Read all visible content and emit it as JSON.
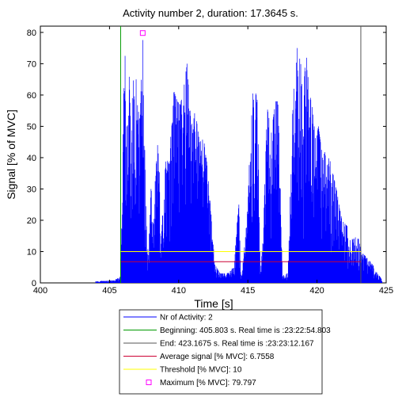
{
  "chart_data": {
    "type": "line",
    "title": "Activity number 2, duration: 17.3645 s.",
    "xlabel": "Time [s]",
    "ylabel": "Signal [% of MVC]",
    "xlim": [
      400,
      425
    ],
    "ylim": [
      0,
      82
    ],
    "xticks": [
      400,
      405,
      410,
      415,
      420,
      425
    ],
    "yticks": [
      0,
      10,
      20,
      30,
      40,
      50,
      60,
      70,
      80
    ],
    "grid": false,
    "legend_position": "bottom",
    "signal_envelope": [
      [
        404.0,
        0.5
      ],
      [
        405.0,
        0.8
      ],
      [
        405.4,
        1.0
      ],
      [
        405.8,
        2.0
      ],
      [
        405.9,
        25
      ],
      [
        406.0,
        55
      ],
      [
        406.1,
        77
      ],
      [
        406.25,
        50
      ],
      [
        406.4,
        70
      ],
      [
        406.55,
        45
      ],
      [
        406.7,
        66
      ],
      [
        406.85,
        58
      ],
      [
        407.0,
        72
      ],
      [
        407.1,
        60
      ],
      [
        407.2,
        50
      ],
      [
        407.4,
        79.8
      ],
      [
        407.6,
        30
      ],
      [
        407.8,
        8
      ],
      [
        408.0,
        30
      ],
      [
        408.2,
        25
      ],
      [
        408.4,
        40
      ],
      [
        408.55,
        48
      ],
      [
        408.7,
        10
      ],
      [
        408.9,
        30
      ],
      [
        409.1,
        40
      ],
      [
        409.3,
        38
      ],
      [
        409.6,
        62
      ],
      [
        409.9,
        58
      ],
      [
        410.1,
        57
      ],
      [
        410.3,
        60
      ],
      [
        410.6,
        70
      ],
      [
        410.9,
        50
      ],
      [
        411.2,
        55
      ],
      [
        411.5,
        45
      ],
      [
        411.8,
        46
      ],
      [
        412.0,
        40
      ],
      [
        412.3,
        25
      ],
      [
        412.6,
        6
      ],
      [
        413.0,
        3
      ],
      [
        413.5,
        3
      ],
      [
        413.8,
        4
      ],
      [
        414.0,
        6
      ],
      [
        414.2,
        18
      ],
      [
        414.35,
        25
      ],
      [
        414.5,
        2
      ],
      [
        414.7,
        8
      ],
      [
        415.0,
        28
      ],
      [
        415.3,
        60
      ],
      [
        415.5,
        62
      ],
      [
        415.7,
        58
      ],
      [
        415.9,
        3
      ],
      [
        416.1,
        14
      ],
      [
        416.4,
        56
      ],
      [
        416.7,
        48
      ],
      [
        417.0,
        58
      ],
      [
        417.2,
        58
      ],
      [
        417.5,
        2
      ],
      [
        417.7,
        3
      ],
      [
        417.9,
        3
      ],
      [
        418.2,
        52
      ],
      [
        418.4,
        68
      ],
      [
        418.6,
        76
      ],
      [
        418.8,
        72
      ],
      [
        419.0,
        55
      ],
      [
        419.2,
        77
      ],
      [
        419.4,
        62
      ],
      [
        419.7,
        55
      ],
      [
        419.9,
        45
      ],
      [
        420.1,
        50
      ],
      [
        420.4,
        40
      ],
      [
        420.7,
        43
      ],
      [
        421.0,
        38
      ],
      [
        421.4,
        30
      ],
      [
        421.8,
        20
      ],
      [
        422.2,
        18
      ],
      [
        422.6,
        15
      ],
      [
        423.0,
        14
      ],
      [
        423.2,
        10
      ],
      [
        423.6,
        8
      ],
      [
        424.0,
        6
      ],
      [
        424.4,
        3
      ],
      [
        424.7,
        1
      ]
    ],
    "beginning_x": 405.803,
    "end_x": 423.1675,
    "average_signal": 6.7558,
    "threshold": 10,
    "maximum": {
      "x": 407.4,
      "y": 79.797
    },
    "colors": {
      "signal": "#0000ff",
      "beginning": "#009900",
      "end": "#555555",
      "average": "#cc0033",
      "threshold": "#ffff00",
      "maximum": "#ff00ff"
    },
    "legend": [
      {
        "key": "signal",
        "label": "Nr of Activity: 2",
        "marker": "line"
      },
      {
        "key": "beginning",
        "label": "Beginning: 405.803 s. Real time is :23:22:54.803",
        "marker": "line"
      },
      {
        "key": "end",
        "label": "End: 423.1675 s. Real time is :23:23:12.167",
        "marker": "line"
      },
      {
        "key": "average",
        "label": "Average signal [% MVC]: 6.7558",
        "marker": "line"
      },
      {
        "key": "threshold",
        "label": "Threshold [% MVC]: 10",
        "marker": "line"
      },
      {
        "key": "maximum",
        "label": "Maximum [% MVC]: 79.797",
        "marker": "square"
      }
    ]
  }
}
